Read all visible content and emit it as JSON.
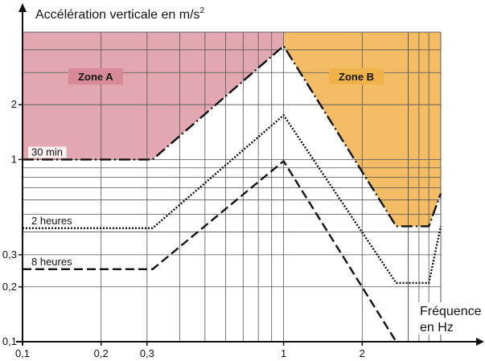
{
  "chart_data": {
    "type": "line",
    "title": "",
    "ylabel": "Accélération verticale en m/s",
    "ylabel_superscript": "2",
    "xlabel_line1": "Fréquence",
    "xlabel_line2": "en Hz",
    "x_scale": "log",
    "y_scale": "log",
    "xlim": [
      0.1,
      4
    ],
    "ylim": [
      0.1,
      5
    ],
    "x_ticks": [
      {
        "value": 0.1,
        "label": "0,1"
      },
      {
        "value": 0.2,
        "label": "0,2"
      },
      {
        "value": 0.3,
        "label": "0,3"
      },
      {
        "value": 1,
        "label": "1"
      },
      {
        "value": 2,
        "label": "2"
      }
    ],
    "y_ticks": [
      {
        "value": 0.1,
        "label": "0,1"
      },
      {
        "value": 0.2,
        "label": "0,2"
      },
      {
        "value": 0.3,
        "label": "0,3"
      },
      {
        "value": 1,
        "label": "1"
      },
      {
        "value": 2,
        "label": "2"
      }
    ],
    "grid": true,
    "zones": [
      {
        "name": "Zone A",
        "color": "#d98a98"
      },
      {
        "name": "Zone B",
        "color": "#f2b24a"
      }
    ],
    "series": [
      {
        "name": "30 min",
        "style": "dash-dot",
        "points": [
          [
            0.1,
            1
          ],
          [
            0.315,
            1
          ],
          [
            1,
            4.2
          ],
          [
            2.7,
            0.43
          ],
          [
            3.6,
            0.43
          ],
          [
            4,
            0.65
          ]
        ]
      },
      {
        "name": "2 heures",
        "style": "dotted",
        "points": [
          [
            0.1,
            0.42
          ],
          [
            0.315,
            0.42
          ],
          [
            1,
            1.75
          ],
          [
            2.7,
            0.21
          ],
          [
            3.6,
            0.21
          ],
          [
            4,
            0.43
          ]
        ]
      },
      {
        "name": "8 heures",
        "style": "dashed",
        "points": [
          [
            0.1,
            0.25
          ],
          [
            0.315,
            0.25
          ],
          [
            1,
            0.98
          ],
          [
            2.7,
            0.1
          ]
        ]
      }
    ]
  }
}
